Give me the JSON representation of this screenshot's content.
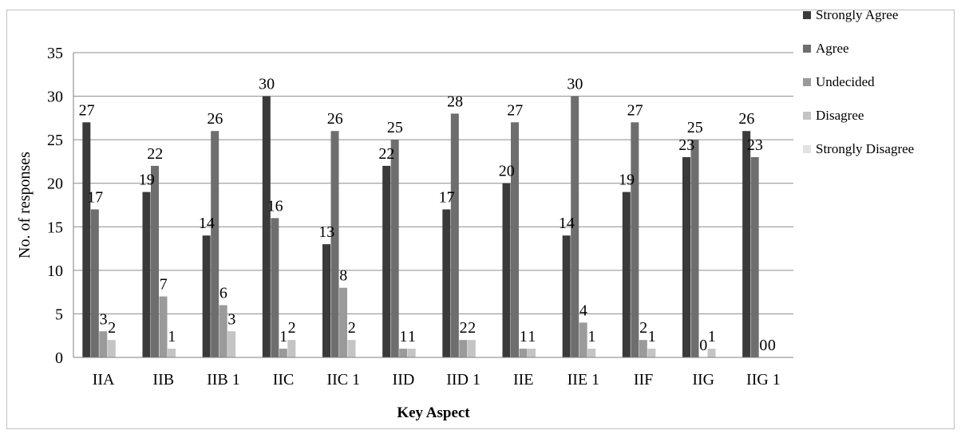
{
  "chart_data": {
    "type": "bar",
    "xlabel": "Key Aspect",
    "ylabel": "No. of responses",
    "ylim": [
      0,
      35
    ],
    "yticks": [
      0,
      5,
      10,
      15,
      20,
      25,
      30,
      35
    ],
    "grid": true,
    "legend_position": "right",
    "categories": [
      "IIA",
      "IIB",
      "IIB 1",
      "IIC",
      "IIC 1",
      "IID",
      "IID 1",
      "IIE",
      "IIE 1",
      "IIF",
      "IIG",
      "IIG 1"
    ],
    "series": [
      {
        "name": "Strongly Agree",
        "color": "#3a3a3a",
        "values": [
          27,
          19,
          14,
          30,
          13,
          22,
          17,
          20,
          14,
          19,
          23,
          26
        ]
      },
      {
        "name": "Agree",
        "color": "#6e6e6e",
        "values": [
          17,
          22,
          26,
          16,
          26,
          25,
          28,
          27,
          30,
          27,
          25,
          23
        ]
      },
      {
        "name": "Undecided",
        "color": "#9a9a9a",
        "values": [
          3,
          7,
          6,
          1,
          8,
          1,
          2,
          1,
          4,
          2,
          0,
          0
        ]
      },
      {
        "name": "Disagree",
        "color": "#c4c4c4",
        "values": [
          2,
          1,
          3,
          2,
          2,
          1,
          2,
          1,
          1,
          1,
          1,
          0
        ]
      },
      {
        "name": "Strongly Disagree",
        "color": "#e2e2e2",
        "values": [
          0,
          0,
          0,
          0,
          0,
          0,
          0,
          0,
          0,
          0,
          0,
          0
        ]
      }
    ],
    "data_labels": {
      "Strongly Agree": [
        "27",
        "19",
        "14",
        "30",
        "13",
        "22",
        "17",
        "20",
        "14",
        "19",
        "23",
        "26"
      ],
      "Agree": [
        "17",
        "22",
        "26",
        "16",
        "26",
        "25",
        "28",
        "27",
        "30",
        "27",
        "25",
        "23"
      ],
      "Undecided": [
        "3",
        "7",
        "6",
        "1",
        "8",
        "1",
        "2",
        "1",
        "4",
        "2",
        "0",
        "0"
      ],
      "Disagree": [
        "2",
        "1",
        "3",
        "2",
        "2",
        "1",
        "2",
        "1",
        "1",
        "1",
        "1",
        "0"
      ]
    }
  }
}
